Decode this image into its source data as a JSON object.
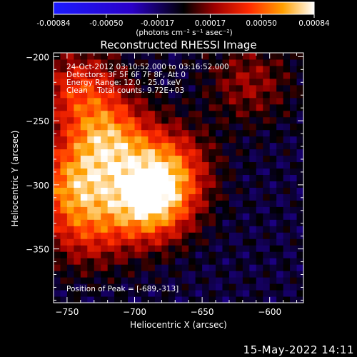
{
  "colorbar": {
    "tick_labels": [
      "-0.00084",
      "-0.00050",
      "-0.00017",
      "0.00017",
      "0.00050",
      "0.00084"
    ],
    "tick_values": [
      -0.00084,
      -0.0005,
      -0.00017,
      0.00017,
      0.0005,
      0.00084
    ],
    "range": [
      -0.00084,
      0.00084
    ],
    "unit_label": "(photons cm⁻² s⁻¹ asec⁻²)"
  },
  "chart_data": {
    "type": "heatmap",
    "title": "Reconstructed RHESSI Image",
    "xlabel": "Heliocentric X (arcsec)",
    "ylabel": "Heliocentric Y (arcsec)",
    "xlim": [
      -760,
      -575
    ],
    "ylim": [
      -392,
      -197
    ],
    "x_ticks": [
      -750,
      -700,
      -650,
      -600
    ],
    "y_ticks": [
      -200,
      -250,
      -300,
      -350
    ],
    "x_tick_labels": [
      "−750",
      "−700",
      "−650",
      "−600"
    ],
    "y_tick_labels": [
      "−200",
      "−250",
      "−300",
      "−350"
    ],
    "info_lines": [
      "24-Oct-2012 03:10:52.000 to 03:16:52.000",
      "Detectors: 3F 5F 6F 7F 8F, Att 0",
      "Energy Range: 12.0 - 25.0 keV",
      "Clean    Total counts: 9.72E+03"
    ],
    "peak_label": "Position of Peak = [-689,-313]",
    "peak": [
      -689,
      -313
    ],
    "value_range": [
      -0.00084,
      0.00084
    ],
    "bright_regions": [
      {
        "x": -720,
        "y": -265,
        "value": 0.00062
      },
      {
        "x": -689,
        "y": -313,
        "value": 0.00084
      },
      {
        "x": -745,
        "y": -300,
        "value": 0.00055
      },
      {
        "x": -675,
        "y": -285,
        "value": 0.00045
      },
      {
        "x": -740,
        "y": -225,
        "value": 0.0004
      },
      {
        "x": -735,
        "y": -335,
        "value": 0.00032
      },
      {
        "x": -615,
        "y": -220,
        "value": 0.00022
      }
    ],
    "background_value": -9e-05
  },
  "footer": {
    "date": "15-May-2022 14:11"
  }
}
